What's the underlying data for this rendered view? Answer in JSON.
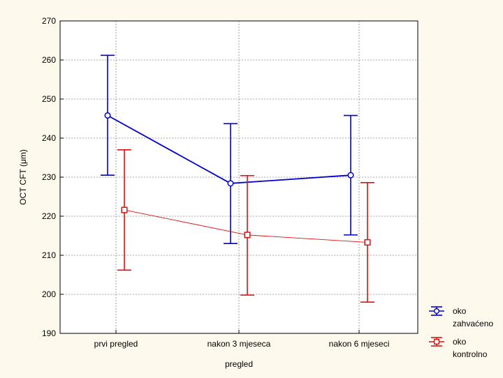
{
  "chart_data": {
    "type": "line",
    "xlabel": "pregled",
    "ylabel": "OCT CFT (μm)",
    "ylim": [
      190,
      270
    ],
    "yticks": [
      190,
      200,
      210,
      220,
      230,
      240,
      250,
      260,
      270
    ],
    "categories": [
      "prvi pregled",
      "nakon 3 mjeseca",
      "nakon 6 mjeseci"
    ],
    "grid": true,
    "legend_position": "bottom-right outside",
    "series": [
      {
        "name": "oko zahvaćeno",
        "legend_lines": [
          "oko",
          "zahvaćeno"
        ],
        "color": "#0000cc",
        "marker": "circle",
        "values": [
          245.8,
          228.4,
          230.5
        ],
        "lower": [
          230.5,
          213.0,
          215.2
        ],
        "upper": [
          261.2,
          243.7,
          245.8
        ]
      },
      {
        "name": "oko kontrolno",
        "legend_lines": [
          "oko",
          "kontrolno"
        ],
        "color": "#dd1111",
        "marker": "square",
        "values": [
          221.6,
          215.2,
          213.3
        ],
        "lower": [
          206.2,
          199.8,
          198.0
        ],
        "upper": [
          237.0,
          230.4,
          228.6
        ]
      }
    ]
  }
}
